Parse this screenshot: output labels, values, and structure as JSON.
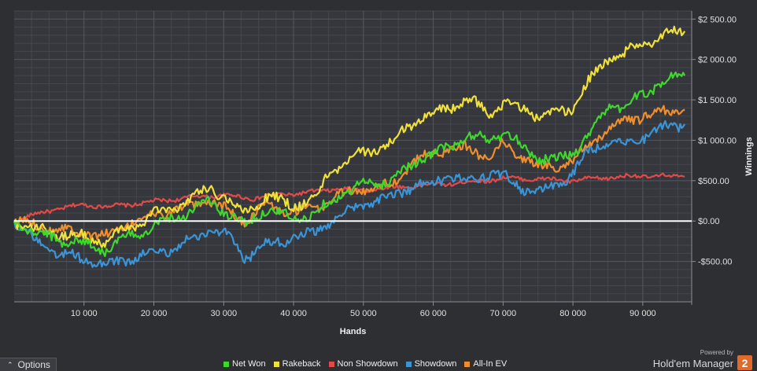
{
  "chart_data": {
    "type": "line",
    "xlabel": "Hands",
    "ylabel": "Winnings",
    "xlim": [
      0,
      97000
    ],
    "ylim": [
      -1000,
      2600
    ],
    "x_ticks": [
      10000,
      20000,
      30000,
      40000,
      50000,
      60000,
      70000,
      80000,
      90000
    ],
    "x_tick_labels": [
      "10 000",
      "20 000",
      "30 000",
      "40 000",
      "50 000",
      "60 000",
      "70 000",
      "80 000",
      "90 000"
    ],
    "y_ticks": [
      -500,
      0,
      500,
      1000,
      1500,
      2000,
      2500
    ],
    "y_tick_labels": [
      "-$500.00",
      "$0.00",
      "$500.00",
      "$1 000.00",
      "$1 500.00",
      "$2 000.00",
      "$2 500.00"
    ],
    "grid": true,
    "zero_line": true,
    "legend_position": "bottom",
    "series": [
      {
        "name": "Net Won",
        "color": "#3fd62e",
        "x": [
          0,
          3000,
          6000,
          9000,
          13000,
          16000,
          20000,
          24000,
          28000,
          30000,
          33000,
          36000,
          40000,
          43000,
          46000,
          50000,
          54000,
          56000,
          59000,
          62000,
          65000,
          68000,
          70000,
          73000,
          75000,
          78000,
          80000,
          82000,
          85000,
          88000,
          90000,
          93000,
          96000
        ],
        "y": [
          0,
          -150,
          -220,
          -260,
          -350,
          -220,
          -50,
          80,
          250,
          120,
          -50,
          150,
          30,
          80,
          300,
          450,
          500,
          650,
          800,
          900,
          1050,
          1000,
          1100,
          900,
          800,
          750,
          850,
          1050,
          1400,
          1450,
          1550,
          1750,
          1800
        ]
      },
      {
        "name": "Rakeback",
        "color": "#f0e03a",
        "x": [
          0,
          3000,
          6000,
          9000,
          13000,
          16000,
          20000,
          24000,
          28000,
          30000,
          33000,
          36000,
          40000,
          43000,
          45000,
          50000,
          54000,
          56000,
          59000,
          62000,
          65000,
          68000,
          70000,
          73000,
          75000,
          78000,
          80000,
          82000,
          85000,
          88000,
          90000,
          93000,
          96000
        ],
        "y": [
          0,
          -100,
          -150,
          -180,
          -250,
          -100,
          80,
          220,
          420,
          300,
          100,
          300,
          200,
          250,
          600,
          850,
          950,
          1150,
          1300,
          1400,
          1500,
          1350,
          1450,
          1380,
          1300,
          1350,
          1400,
          1700,
          2000,
          2100,
          2200,
          2300,
          2350
        ]
      },
      {
        "name": "Non Showdown",
        "color": "#e24a4a",
        "x": [
          0,
          3000,
          6000,
          10000,
          14000,
          18000,
          22000,
          26000,
          30000,
          34000,
          38000,
          42000,
          46000,
          50000,
          55000,
          60000,
          65000,
          70000,
          75000,
          80000,
          85000,
          90000,
          96000
        ],
        "y": [
          0,
          80,
          150,
          200,
          180,
          220,
          260,
          300,
          320,
          280,
          330,
          350,
          400,
          380,
          420,
          450,
          480,
          530,
          520,
          500,
          540,
          560,
          550
        ]
      },
      {
        "name": "Showdown",
        "color": "#3b94d6",
        "x": [
          0,
          3000,
          6000,
          9000,
          13000,
          16000,
          20000,
          24000,
          28000,
          30000,
          33000,
          36000,
          40000,
          43000,
          46000,
          50000,
          54000,
          56000,
          59000,
          62000,
          65000,
          68000,
          70000,
          73000,
          75000,
          78000,
          80000,
          82000,
          85000,
          88000,
          90000,
          93000,
          96000
        ],
        "y": [
          0,
          -250,
          -400,
          -450,
          -550,
          -480,
          -400,
          -300,
          -100,
          -150,
          -450,
          -300,
          -200,
          -150,
          50,
          200,
          300,
          400,
          450,
          550,
          500,
          600,
          550,
          400,
          350,
          450,
          600,
          850,
          1000,
          950,
          1050,
          1150,
          1200
        ]
      },
      {
        "name": "All-In EV",
        "color": "#ef8e2e",
        "x": [
          0,
          3000,
          6000,
          9000,
          13000,
          16000,
          20000,
          24000,
          28000,
          30000,
          33000,
          36000,
          40000,
          43000,
          46000,
          50000,
          54000,
          56000,
          59000,
          62000,
          65000,
          68000,
          70000,
          73000,
          75000,
          78000,
          80000,
          82000,
          85000,
          88000,
          90000,
          93000,
          96000
        ],
        "y": [
          0,
          -50,
          -100,
          -120,
          -200,
          -50,
          80,
          150,
          250,
          150,
          0,
          200,
          100,
          150,
          300,
          400,
          450,
          650,
          800,
          900,
          900,
          800,
          950,
          800,
          650,
          700,
          750,
          900,
          1150,
          1250,
          1300,
          1350,
          1380
        ]
      }
    ]
  },
  "legend": [
    {
      "label": "Net Won",
      "color": "#3fd62e"
    },
    {
      "label": "Rakeback",
      "color": "#f0e03a"
    },
    {
      "label": "Non Showdown",
      "color": "#e24a4a"
    },
    {
      "label": "Showdown",
      "color": "#3b94d6"
    },
    {
      "label": "All-In EV",
      "color": "#ef8e2e"
    }
  ],
  "ui": {
    "options_label": "Options",
    "powered_by": "Powered by",
    "brand_name": "Hold'em Manager",
    "brand_badge": "2"
  }
}
